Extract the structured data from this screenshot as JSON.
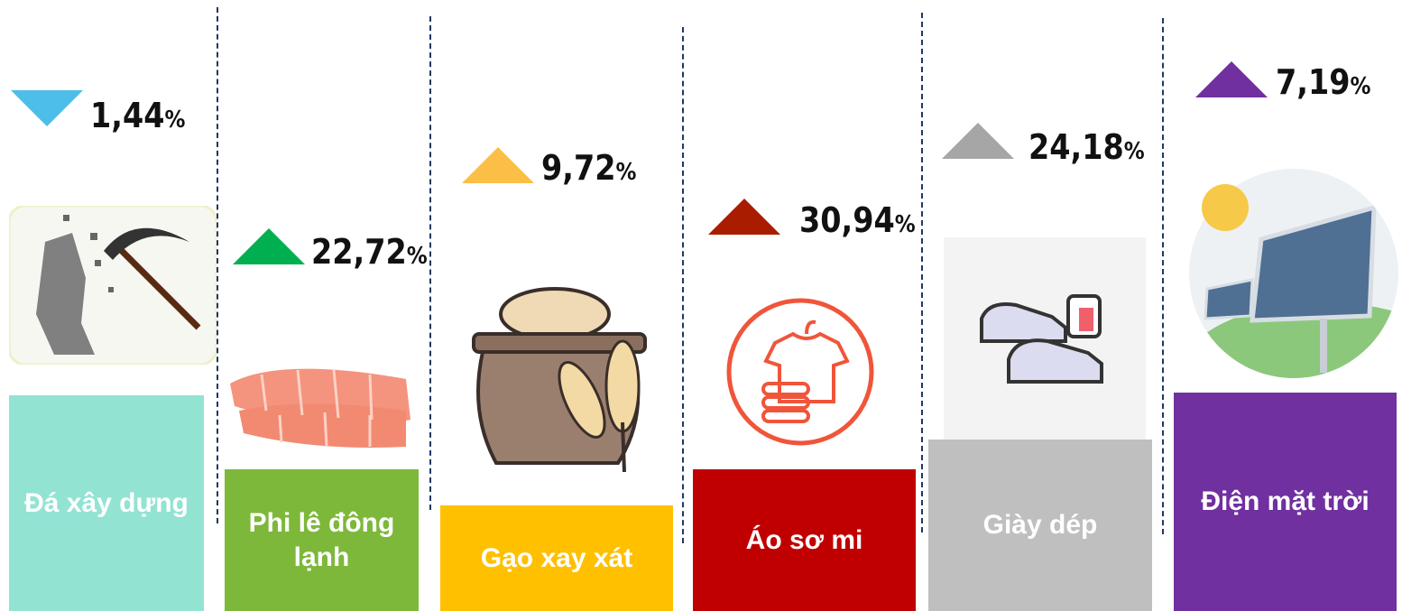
{
  "items": [
    {
      "label": "Đá xây dựng",
      "value": "1,44",
      "unit": "%",
      "direction": "down",
      "arrow_color": "#4dbde9",
      "color": "#93e3d3"
    },
    {
      "label": "Phi lê đông lạnh",
      "value": "22,72",
      "unit": "%",
      "direction": "up",
      "arrow_color": "#00b050",
      "color": "#7db83a"
    },
    {
      "label": "Gạo xay xát",
      "value": "9,72",
      "unit": "%",
      "direction": "up",
      "arrow_color": "#fbbf47",
      "color": "#ffc000"
    },
    {
      "label": "Áo sơ mi",
      "value": "30,94",
      "unit": "%",
      "direction": "up",
      "arrow_color": "#a91c00",
      "color": "#c00000"
    },
    {
      "label": "Giày dép",
      "value": "24,18",
      "unit": "%",
      "direction": "up",
      "arrow_color": "#a6a6a6",
      "color": "#bfbfbf"
    },
    {
      "label": "Điện mặt trời",
      "value": "7,19",
      "unit": "%",
      "direction": "up",
      "arrow_color": "#7030a0",
      "color": "#7030a0"
    }
  ]
}
